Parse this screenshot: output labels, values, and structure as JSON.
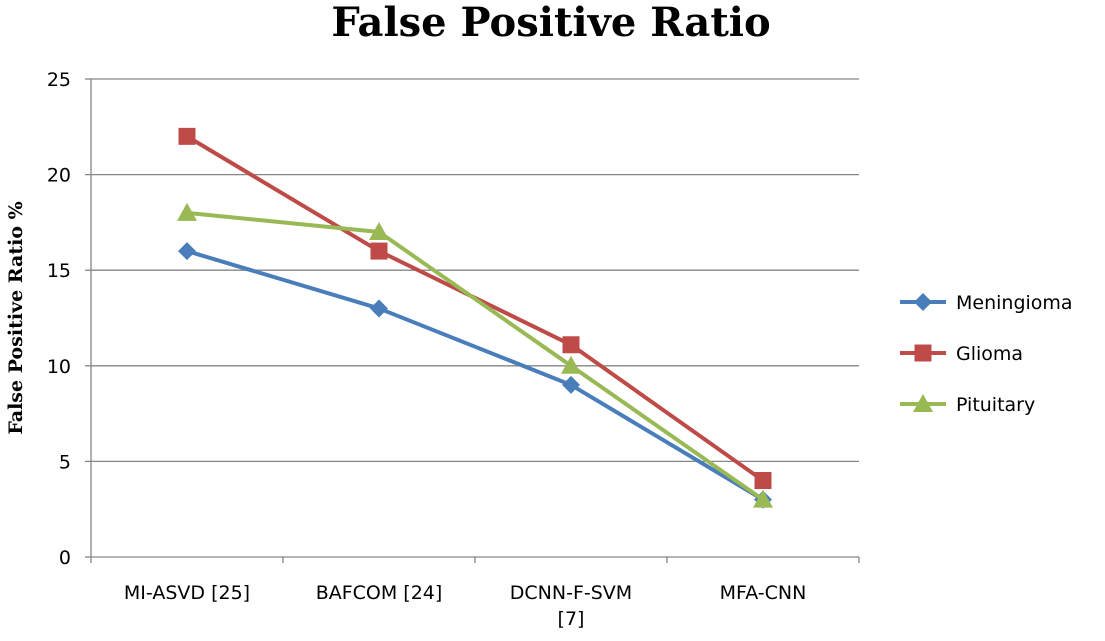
{
  "chart_data": {
    "type": "line",
    "title": "False Positive Ratio",
    "xlabel": "",
    "ylabel": "False Positive Ratio %",
    "ylim": [
      0,
      25
    ],
    "yticks": [
      0,
      5,
      10,
      15,
      20,
      25
    ],
    "grid": true,
    "legend_position": "right",
    "categories": [
      [
        "MI-ASVD [25]"
      ],
      [
        "BAFCOM [24]"
      ],
      [
        "DCNN-F-SVM",
        "[7]"
      ],
      [
        "MFA-CNN"
      ]
    ],
    "series": [
      {
        "name": "Meningioma",
        "values": [
          16,
          13,
          9,
          3
        ],
        "color": "#4a7ebb",
        "marker": "diamond"
      },
      {
        "name": "Glioma",
        "values": [
          22,
          16,
          11.1,
          4
        ],
        "color": "#be4b48",
        "marker": "square"
      },
      {
        "name": "Pituitary",
        "values": [
          18,
          17,
          10,
          3
        ],
        "color": "#98b954",
        "marker": "triangle"
      }
    ]
  }
}
